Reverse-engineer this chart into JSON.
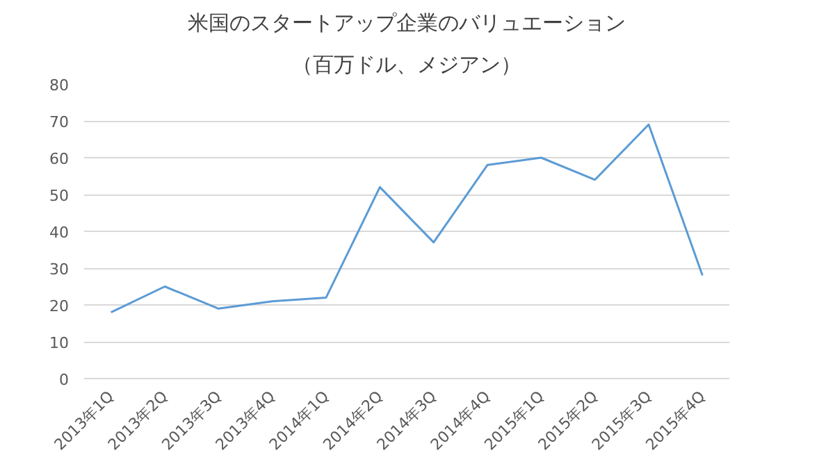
{
  "chart_data": {
    "type": "line",
    "title": "米国のスタートアップ企業のバリュエーション",
    "subtitle": "（百万ドル、メジアン）",
    "categories": [
      "2013年1Q",
      "2013年2Q",
      "2013年3Q",
      "2013年4Q",
      "2014年1Q",
      "2014年2Q",
      "2014年3Q",
      "2014年4Q",
      "2015年1Q",
      "2015年2Q",
      "2015年3Q",
      "2015年4Q"
    ],
    "series": [
      {
        "color": "#5b9bd5",
        "values": [
          18,
          25,
          19,
          21,
          22,
          52,
          37,
          58,
          60,
          54,
          69,
          28
        ]
      }
    ],
    "ylim": [
      0,
      80
    ],
    "yticks": [
      0,
      10,
      20,
      30,
      40,
      50,
      60,
      70,
      80
    ],
    "grid": "y",
    "marker": "none",
    "line_style": "solid"
  }
}
